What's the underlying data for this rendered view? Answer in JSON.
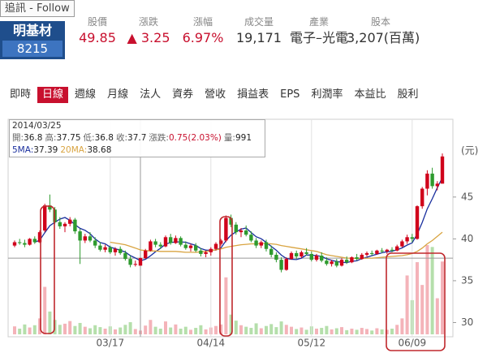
{
  "follow_tag": "追訊 - Follow",
  "stock": {
    "name": "明基材",
    "code": "8215"
  },
  "quote": [
    {
      "label": "股價",
      "value": 49.85,
      "color": "#c8102e"
    },
    {
      "label": "漲跌",
      "value": "▲ 3.25",
      "color": "#c8102e"
    },
    {
      "label": "漲幅",
      "value": "6.97%",
      "color": "#c8102e"
    },
    {
      "label": "成交量",
      "value": "19,171",
      "color": "#333333"
    },
    {
      "label": "產業",
      "value": "電子–光電",
      "color": "#333333"
    },
    {
      "label": "股本",
      "value": "3,207(百萬)",
      "color": "#333333"
    }
  ],
  "tabs": [
    {
      "label": "即時"
    },
    {
      "label": "日線",
      "active": true
    },
    {
      "label": "週線"
    },
    {
      "label": "月線"
    },
    {
      "label": "法人"
    },
    {
      "label": "資券"
    },
    {
      "label": "營收"
    },
    {
      "label": "損益表"
    },
    {
      "label": "EPS"
    },
    {
      "label": "利潤率"
    },
    {
      "label": "本益比"
    },
    {
      "label": "股利"
    }
  ],
  "tooltip": {
    "date": "2014/03/25",
    "fields": [
      {
        "label": "開:",
        "value": 36.8
      },
      {
        "label": "高:",
        "value": 37.75
      },
      {
        "label": "低:",
        "value": 36.8
      },
      {
        "label": "收:",
        "value": 37.7
      },
      {
        "label": "漲跌:",
        "value": "0.75(2.03%)",
        "color": "#c8102e"
      },
      {
        "label": "量:",
        "value": 991
      }
    ],
    "ma": [
      {
        "label": "5MA:",
        "value": 37.39
      },
      {
        "label": "20MA:",
        "value": 38.68
      }
    ]
  },
  "chart_data": {
    "type": "candlestick",
    "unit_label": "(元)",
    "categories": [
      null,
      null,
      null,
      null,
      null,
      null,
      null,
      null,
      null,
      null,
      null,
      null,
      null,
      null,
      null,
      null,
      null,
      null,
      null,
      "03/17",
      null,
      null,
      null,
      null,
      null,
      null,
      null,
      null,
      null,
      null,
      null,
      null,
      null,
      null,
      null,
      null,
      null,
      null,
      null,
      "04/14",
      null,
      null,
      null,
      null,
      null,
      null,
      null,
      null,
      null,
      null,
      null,
      null,
      null,
      null,
      null,
      null,
      null,
      null,
      null,
      "05/12",
      null,
      null,
      null,
      null,
      null,
      null,
      null,
      null,
      null,
      null,
      null,
      null,
      null,
      null,
      null,
      null,
      null,
      null,
      null,
      "06/09",
      null,
      null,
      null,
      null,
      null,
      null
    ],
    "candles": [
      [
        39.2,
        39.8,
        39.0,
        39.6
      ],
      [
        39.6,
        40.0,
        39.3,
        39.5
      ],
      [
        39.5,
        39.9,
        39.0,
        39.3
      ],
      [
        39.3,
        40.1,
        39.2,
        40.0
      ],
      [
        40.0,
        40.3,
        39.4,
        39.6
      ],
      [
        39.6,
        41.0,
        39.5,
        40.8
      ],
      [
        41.0,
        44.2,
        40.8,
        44.0
      ],
      [
        44.0,
        45.3,
        43.2,
        43.5
      ],
      [
        43.5,
        43.8,
        41.8,
        42.0
      ],
      [
        42.0,
        42.6,
        41.2,
        41.5
      ],
      [
        41.5,
        42.0,
        40.8,
        41.8
      ],
      [
        41.8,
        42.6,
        41.5,
        42.3
      ],
      [
        42.3,
        42.5,
        40.6,
        40.9
      ],
      [
        40.9,
        41.2,
        37.0,
        39.8
      ],
      [
        39.8,
        40.6,
        39.5,
        40.3
      ],
      [
        40.3,
        40.8,
        39.6,
        39.8
      ],
      [
        39.8,
        40.2,
        38.9,
        39.2
      ],
      [
        39.2,
        39.6,
        38.5,
        38.7
      ],
      [
        38.7,
        39.3,
        38.4,
        39.0
      ],
      [
        39.0,
        39.2,
        38.2,
        38.4
      ],
      [
        38.4,
        39.0,
        38.0,
        38.8
      ],
      [
        38.8,
        39.1,
        38.1,
        38.3
      ],
      [
        38.3,
        38.6,
        37.4,
        37.6
      ],
      [
        37.6,
        38.0,
        36.6,
        36.9
      ],
      [
        36.9,
        37.4,
        36.7,
        37.0
      ],
      [
        36.8,
        37.75,
        36.8,
        37.7
      ],
      [
        37.7,
        38.8,
        37.6,
        38.6
      ],
      [
        38.6,
        39.9,
        38.5,
        39.7
      ],
      [
        39.7,
        40.0,
        39.0,
        39.3
      ],
      [
        39.3,
        39.6,
        38.8,
        39.1
      ],
      [
        39.1,
        40.4,
        39.0,
        40.2
      ],
      [
        40.2,
        40.6,
        39.3,
        39.5
      ],
      [
        39.5,
        40.4,
        39.4,
        40.1
      ],
      [
        40.1,
        40.3,
        39.1,
        39.3
      ],
      [
        39.3,
        39.7,
        38.7,
        38.9
      ],
      [
        38.9,
        39.4,
        38.5,
        39.2
      ],
      [
        39.2,
        39.5,
        38.4,
        38.6
      ],
      [
        38.6,
        38.9,
        37.9,
        38.2
      ],
      [
        38.2,
        38.6,
        37.8,
        38.4
      ],
      [
        38.4,
        39.0,
        38.0,
        38.8
      ],
      [
        38.8,
        39.6,
        38.6,
        39.4
      ],
      [
        39.4,
        40.0,
        39.2,
        39.8
      ],
      [
        39.8,
        42.8,
        39.6,
        42.5
      ],
      [
        42.5,
        42.9,
        41.4,
        41.7
      ],
      [
        41.7,
        42.0,
        40.5,
        40.8
      ],
      [
        40.8,
        41.3,
        40.2,
        41.0
      ],
      [
        41.0,
        41.6,
        40.3,
        40.5
      ],
      [
        40.5,
        40.9,
        39.6,
        39.8
      ],
      [
        39.8,
        40.1,
        38.9,
        39.2
      ],
      [
        39.2,
        39.8,
        38.9,
        39.6
      ],
      [
        39.6,
        39.9,
        38.5,
        38.8
      ],
      [
        38.8,
        39.2,
        37.8,
        38.1
      ],
      [
        38.1,
        38.4,
        37.2,
        37.5
      ],
      [
        37.5,
        37.8,
        36.0,
        36.3
      ],
      [
        36.3,
        37.8,
        36.2,
        37.6
      ],
      [
        37.6,
        38.5,
        37.5,
        38.3
      ],
      [
        38.3,
        38.6,
        37.6,
        37.9
      ],
      [
        37.9,
        38.6,
        37.7,
        38.4
      ],
      [
        38.4,
        38.9,
        38.0,
        38.2
      ],
      [
        38.2,
        38.5,
        37.3,
        37.5
      ],
      [
        37.5,
        38.2,
        37.3,
        38.0
      ],
      [
        38.0,
        38.4,
        37.2,
        37.4
      ],
      [
        37.4,
        37.8,
        36.8,
        37.0
      ],
      [
        37.0,
        37.5,
        36.7,
        37.3
      ],
      [
        37.3,
        37.6,
        36.6,
        36.8
      ],
      [
        36.8,
        37.7,
        36.7,
        37.5
      ],
      [
        37.5,
        37.9,
        37.0,
        37.2
      ],
      [
        37.2,
        37.9,
        37.1,
        37.8
      ],
      [
        37.8,
        38.2,
        37.4,
        37.6
      ],
      [
        37.6,
        38.3,
        37.5,
        38.1
      ],
      [
        38.1,
        38.5,
        37.9,
        38.3
      ],
      [
        38.3,
        38.6,
        38.0,
        38.2
      ],
      [
        38.2,
        38.7,
        38.1,
        38.6
      ],
      [
        38.6,
        38.9,
        38.3,
        38.5
      ],
      [
        38.5,
        38.8,
        38.2,
        38.7
      ],
      [
        38.7,
        39.0,
        38.4,
        38.6
      ],
      [
        38.6,
        39.3,
        38.5,
        39.1
      ],
      [
        39.1,
        39.9,
        39.0,
        39.7
      ],
      [
        39.7,
        40.5,
        39.4,
        40.2
      ],
      [
        40.2,
        40.6,
        39.6,
        40.0
      ],
      [
        40.0,
        44.0,
        39.9,
        43.9
      ],
      [
        43.9,
        46.2,
        43.6,
        46.0
      ],
      [
        46.0,
        48.2,
        45.2,
        47.8
      ],
      [
        47.8,
        48.5,
        46.0,
        46.3
      ],
      [
        46.3,
        46.9,
        45.8,
        46.6
      ],
      [
        46.6,
        50.2,
        46.6,
        49.85
      ]
    ],
    "volume": [
      2100,
      1500,
      2600,
      1800,
      2400,
      4200,
      12500,
      6000,
      3800,
      2500,
      2800,
      3500,
      2200,
      3000,
      2000,
      1600,
      2400,
      1900,
      1500,
      2100,
      1300,
      1800,
      2500,
      3200,
      1400,
      991,
      2300,
      3800,
      2000,
      1500,
      3400,
      1800,
      2600,
      1500,
      2000,
      1200,
      1700,
      2400,
      1300,
      1800,
      2200,
      2600,
      15000,
      5200,
      3600,
      2400,
      2000,
      1700,
      2900,
      1600,
      2200,
      2700,
      1900,
      3400,
      2500,
      2000,
      1400,
      1800,
      1200,
      2100,
      1500,
      1700,
      2200,
      1300,
      1600,
      1900,
      1100,
      1500,
      1200,
      1700,
      1400,
      1000,
      1600,
      1300,
      1200,
      1500,
      2500,
      4200,
      15500,
      9000,
      19000,
      13000,
      23500,
      23000,
      9500,
      19171
    ],
    "series": [
      {
        "color": "#1a2f9e",
        "values": [
          null,
          null,
          null,
          null,
          39.6,
          39.84,
          40.74,
          41.58,
          41.98,
          42.36,
          42.56,
          42.22,
          41.7,
          41.26,
          41.02,
          40.62,
          40.0,
          39.56,
          39.4,
          39.02,
          38.82,
          38.64,
          38.42,
          38.0,
          37.72,
          37.39,
          37.56,
          37.98,
          38.46,
          38.88,
          39.38,
          39.56,
          39.64,
          39.64,
          39.6,
          39.4,
          39.22,
          38.84,
          38.66,
          38.64,
          38.68,
          38.92,
          39.78,
          40.44,
          40.84,
          41.16,
          41.3,
          40.76,
          40.26,
          40.02,
          39.58,
          39.1,
          38.64,
          38.06,
          37.66,
          37.56,
          37.52,
          37.7,
          38.08,
          38.06,
          38.0,
          37.9,
          37.62,
          37.44,
          37.3,
          37.2,
          37.16,
          37.32,
          37.38,
          37.64,
          37.8,
          38.0,
          38.16,
          38.34,
          38.46,
          38.52,
          38.7,
          38.92,
          39.26,
          39.52,
          40.58,
          41.96,
          43.58,
          44.8,
          46.12,
          47.31
        ]
      },
      {
        "color": "#d9a441",
        "values": [
          null,
          null,
          null,
          null,
          null,
          null,
          null,
          null,
          null,
          null,
          null,
          null,
          null,
          null,
          null,
          null,
          null,
          null,
          null,
          39.6,
          39.5,
          39.4,
          39.3,
          39.1,
          38.9,
          38.68,
          38.6,
          38.55,
          38.55,
          38.5,
          38.5,
          38.5,
          38.5,
          38.45,
          38.4,
          38.4,
          38.4,
          38.45,
          38.5,
          38.6,
          38.7,
          38.8,
          39.0,
          39.1,
          39.2,
          39.3,
          39.35,
          39.4,
          39.4,
          39.45,
          39.45,
          39.4,
          39.35,
          39.2,
          39.1,
          39.0,
          38.9,
          38.8,
          38.7,
          38.6,
          38.5,
          38.3,
          38.1,
          38.0,
          37.9,
          37.8,
          37.7,
          37.7,
          37.65,
          37.65,
          37.7,
          37.7,
          37.75,
          37.8,
          37.85,
          37.9,
          37.95,
          38.0,
          38.1,
          38.25,
          38.5,
          38.9,
          39.4,
          39.8,
          40.3,
          40.8
        ]
      }
    ],
    "ylim": [
      28.3,
      54.0
    ],
    "yticks": [
      30,
      35,
      40,
      45
    ],
    "up_color": "#d0021b",
    "down_color": "#2e9a2e",
    "volume_up_color": "#f4b3b9",
    "volume_down_color": "#b5dfab",
    "crosshair_index": 25
  }
}
